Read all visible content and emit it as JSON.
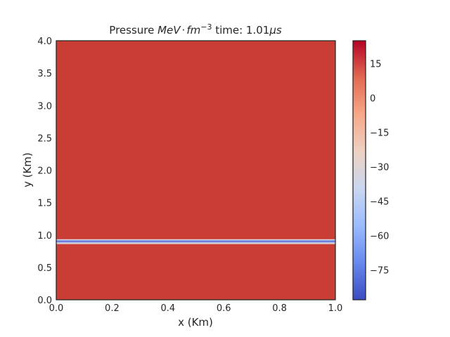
{
  "chart_data": {
    "type": "heatmap",
    "title_prefix": "Pressure ",
    "title_math_base": "MeV",
    "title_math_dot": "·",
    "title_math_fm": "fm",
    "title_math_exp": "−3",
    "title_time_label": " time: 1.01",
    "title_time_unit": "μs",
    "xlabel": "x (Km)",
    "ylabel": "y (Km)",
    "xlim": [
      0.0,
      1.0
    ],
    "ylim": [
      0.0,
      4.0
    ],
    "xticks": [
      "0.0",
      "0.2",
      "0.4",
      "0.6",
      "0.8",
      "1.0"
    ],
    "yticks": [
      "0.0",
      "0.5",
      "1.0",
      "1.5",
      "2.0",
      "2.5",
      "3.0",
      "3.5",
      "4.0"
    ],
    "field": {
      "background_value": 23,
      "background_color": "#c93d35",
      "band": {
        "y_center": 0.89,
        "bands": [
          {
            "y0": 0.92,
            "y1": 0.935,
            "color": "#d8dce4"
          },
          {
            "y0": 0.905,
            "y1": 0.92,
            "color": "#7e9ef3"
          },
          {
            "y0": 0.89,
            "y1": 0.905,
            "color": "#5b73d8"
          },
          {
            "y0": 0.875,
            "y1": 0.89,
            "color": "#b9cbf2"
          },
          {
            "y0": 0.86,
            "y1": 0.875,
            "color": "#e0dbd8"
          }
        ]
      }
    },
    "colorbar": {
      "range": [
        -88,
        25
      ],
      "ticks": [
        "15",
        "0",
        "−15",
        "−30",
        "−45",
        "−60",
        "−75"
      ],
      "tick_values": [
        15,
        0,
        -15,
        -30,
        -45,
        -60,
        -75
      ],
      "cmap": "coolwarm",
      "cmap_stops": [
        "#3b4cc0",
        "#6788ee",
        "#9abbff",
        "#c9d7f0",
        "#edd1c2",
        "#f7a889",
        "#e26952",
        "#b40426"
      ]
    }
  }
}
